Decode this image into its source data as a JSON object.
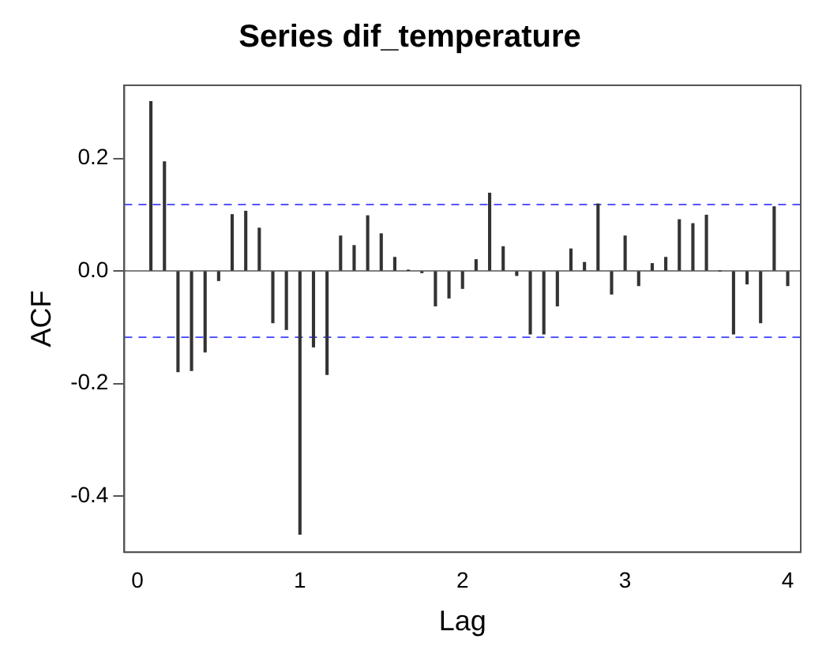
{
  "chart_data": {
    "type": "bar",
    "title": "Series dif_temperature",
    "xlabel": "Lag",
    "ylabel": "ACF",
    "x": [
      0.0833,
      0.1667,
      0.25,
      0.3333,
      0.4167,
      0.5,
      0.5833,
      0.6667,
      0.75,
      0.8333,
      0.9167,
      1.0,
      1.0833,
      1.1667,
      1.25,
      1.3333,
      1.4167,
      1.5,
      1.5833,
      1.6667,
      1.75,
      1.8333,
      1.9167,
      2.0,
      2.0833,
      2.1667,
      2.25,
      2.3333,
      2.4167,
      2.5,
      2.5833,
      2.6667,
      2.75,
      2.8333,
      2.9167,
      3.0,
      3.0833,
      3.1667,
      3.25,
      3.3333,
      3.4167,
      3.5,
      3.5833,
      3.6667,
      3.75,
      3.8333,
      3.9167,
      4.0
    ],
    "values": [
      0.301,
      0.194,
      -0.179,
      -0.177,
      -0.144,
      -0.017,
      0.1,
      0.106,
      0.076,
      -0.092,
      -0.104,
      -0.468,
      -0.135,
      -0.184,
      0.062,
      0.045,
      0.098,
      0.066,
      0.024,
      0.001,
      -0.003,
      -0.062,
      -0.048,
      -0.031,
      0.02,
      0.138,
      0.043,
      -0.008,
      -0.112,
      -0.112,
      -0.062,
      0.039,
      0.015,
      0.119,
      -0.041,
      0.062,
      -0.026,
      0.013,
      0.024,
      0.091,
      0.084,
      0.099,
      0.0,
      -0.112,
      -0.023,
      -0.092,
      0.114,
      -0.026
    ],
    "color": "#333333",
    "xlim": [
      -0.08,
      4.08
    ],
    "xticks": [
      0,
      1,
      2,
      3,
      4
    ],
    "ylim": [
      -0.5,
      0.33
    ],
    "yticks": [
      {
        "value": -0.4,
        "label": "-0.4"
      },
      {
        "value": -0.2,
        "label": "-0.2"
      },
      {
        "value": 0,
        "label": "0.0"
      },
      {
        "value": 0.2,
        "label": "0.2"
      }
    ],
    "grid": false,
    "legend": false,
    "ref_lines": [
      {
        "axis": "y",
        "value": 0.118,
        "color": "#5555ff",
        "line_style": "dashed"
      },
      {
        "axis": "y",
        "value": -0.118,
        "color": "#5555ff",
        "line_style": "dashed"
      },
      {
        "axis": "y",
        "value": 0,
        "color": "#808080",
        "line_style": "solid"
      }
    ]
  }
}
